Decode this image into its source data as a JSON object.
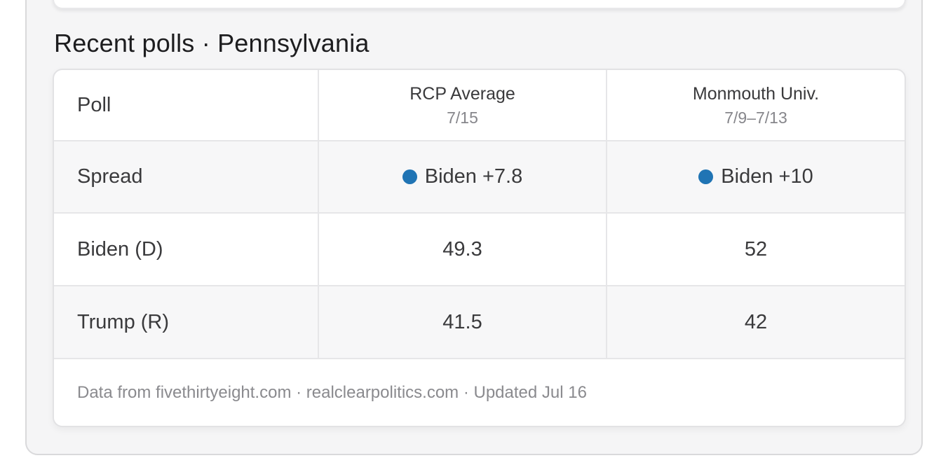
{
  "header": {
    "title": "Recent polls · Pennsylvania"
  },
  "table": {
    "columns": [
      {
        "label": "Poll",
        "sublabel": ""
      },
      {
        "label": "RCP Average",
        "sublabel": "7/15"
      },
      {
        "label": "Monmouth Univ.",
        "sublabel": "7/9–7/13"
      }
    ],
    "rows": [
      {
        "label": "Spread",
        "cells": [
          "Biden +7.8",
          "Biden +10"
        ],
        "has_dot": true
      },
      {
        "label": "Biden (D)",
        "cells": [
          "49.3",
          "52"
        ],
        "has_dot": false
      },
      {
        "label": "Trump (R)",
        "cells": [
          "41.5",
          "42"
        ],
        "has_dot": false
      }
    ],
    "footer": "Data from fivethirtyeight.com · realclearpolitics.com · Updated Jul 16"
  },
  "colors": {
    "candidate_dot": "#2074b4"
  }
}
